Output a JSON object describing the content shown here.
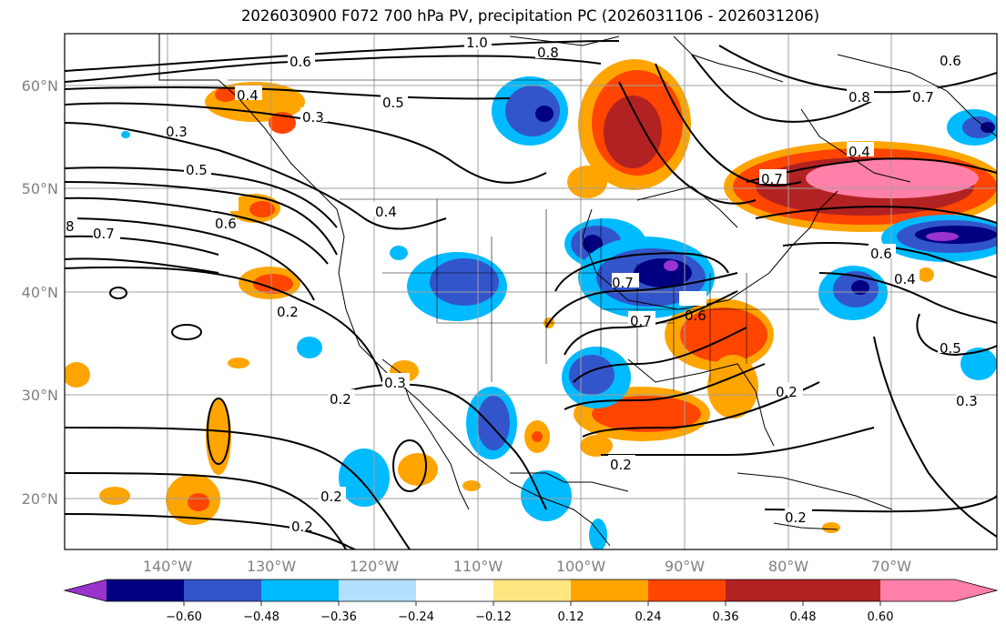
{
  "title": "2026030900 F072 700 hPa PV, precipitation PC (2026031106 - 2026031206)",
  "lat_labels": [
    "60°N",
    "50°N",
    "40°N",
    "30°N",
    "20°N"
  ],
  "lon_labels": [
    "140°W",
    "130°W",
    "120°W",
    "110°W",
    "100°W",
    "90°W",
    "80°W",
    "70°W"
  ],
  "colorbar": {
    "ticks": [
      "−0.60",
      "−0.48",
      "−0.36",
      "−0.24",
      "−0.12",
      "0.12",
      "0.24",
      "0.36",
      "0.48",
      "0.60"
    ],
    "colors": [
      "#9933cc",
      "#000080",
      "#3355cc",
      "#00bbff",
      "#b3e0ff",
      "#ffffff",
      "#ffe680",
      "#ffa500",
      "#ff4500",
      "#b22222",
      "#ff80a8"
    ]
  },
  "contour_labels": [
    "1.0",
    "0.8",
    "0.6",
    "0.6",
    "0.5",
    "0.4",
    "0.3",
    "0.3",
    "0.5",
    "0.7",
    "0.6",
    "0.7",
    "0.2",
    "0.2",
    "0.2",
    "0.3",
    "0.2",
    "0.7",
    "0.6",
    "0.2",
    "0.2",
    "0.7",
    "0.4",
    "0.8",
    "0.6",
    "0.4",
    "0.5",
    "0.3",
    "0.4",
    "0.2",
    "8",
    "0.7"
  ]
}
